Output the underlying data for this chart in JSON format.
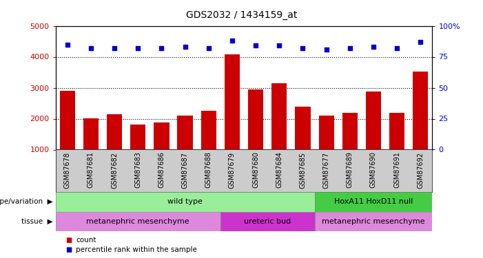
{
  "title": "GDS2032 / 1434159_at",
  "samples": [
    "GSM87678",
    "GSM87681",
    "GSM87682",
    "GSM87683",
    "GSM87686",
    "GSM87687",
    "GSM87688",
    "GSM87679",
    "GSM87680",
    "GSM87684",
    "GSM87685",
    "GSM87677",
    "GSM87689",
    "GSM87690",
    "GSM87691",
    "GSM87692"
  ],
  "counts": [
    2900,
    2000,
    2150,
    1820,
    1880,
    2100,
    2250,
    4080,
    2950,
    3150,
    2380,
    2100,
    2180,
    2870,
    2180,
    3520
  ],
  "percentile_ranks": [
    85,
    82,
    82,
    82,
    82,
    83,
    82,
    88,
    84,
    84,
    82,
    81,
    82,
    83,
    82,
    87
  ],
  "bar_color": "#cc0000",
  "dot_color": "#0000cc",
  "ylim_left": [
    1000,
    5000
  ],
  "ylim_right": [
    0,
    100
  ],
  "yticks_left": [
    1000,
    2000,
    3000,
    4000,
    5000
  ],
  "yticks_right": [
    0,
    25,
    50,
    75,
    100
  ],
  "ytick_labels_right": [
    "0",
    "25",
    "50",
    "75",
    "100%"
  ],
  "genotype_groups": [
    {
      "label": "wild type",
      "start": 0,
      "end": 10,
      "color": "#99ee99"
    },
    {
      "label": "HoxA11 HoxD11 null",
      "start": 11,
      "end": 15,
      "color": "#44cc44"
    }
  ],
  "tissue_groups": [
    {
      "label": "metanephric mesenchyme",
      "start": 0,
      "end": 6,
      "color": "#dd88dd"
    },
    {
      "label": "ureteric bud",
      "start": 7,
      "end": 10,
      "color": "#cc33cc"
    },
    {
      "label": "metanephric mesenchyme",
      "start": 11,
      "end": 15,
      "color": "#dd88dd"
    }
  ],
  "legend_count_color": "#cc0000",
  "legend_percentile_color": "#0000cc",
  "row_label_genotype": "genotype/variation",
  "row_label_tissue": "tissue",
  "bg_color": "#ffffff",
  "xticklabel_bg": "#cccccc"
}
